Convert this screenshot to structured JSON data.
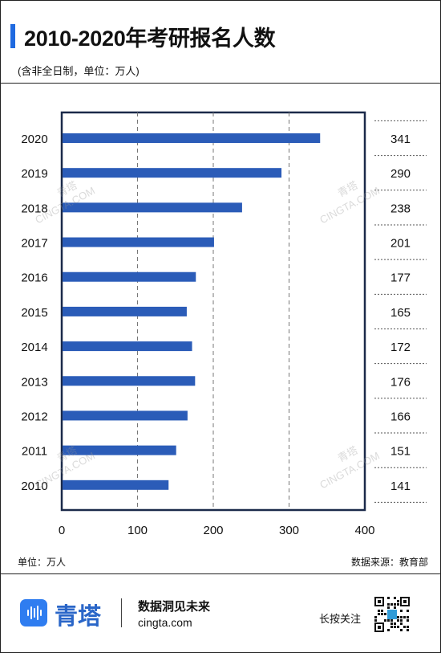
{
  "header": {
    "title": "2010-2020年考研报名人数",
    "subtitle": "(含非全日制，单位：万人)"
  },
  "footer": {
    "unit": "单位：万人",
    "source": "数据来源：教育部"
  },
  "brand": {
    "name": "青塔",
    "slogan": "数据洞见未来",
    "url": "cingta.com",
    "qr_prompt": "长按关注",
    "accent_color": "#2a66c8",
    "logo_icon": "waveform-logo-icon",
    "qr_icon": "qr-code-icon"
  },
  "watermarks": [
    "青塔",
    "CINGTA.COM"
  ],
  "chart_data": {
    "type": "bar",
    "orientation": "horizontal",
    "categories": [
      "2020",
      "2019",
      "2018",
      "2017",
      "2016",
      "2015",
      "2014",
      "2013",
      "2012",
      "2011",
      "2010"
    ],
    "values": [
      341,
      290,
      238,
      201,
      177,
      165,
      172,
      176,
      166,
      151,
      141
    ],
    "value_labels": [
      "341",
      "290",
      "238",
      "201",
      "177",
      "165",
      "172",
      "176",
      "166",
      "151",
      "141"
    ],
    "xlim": [
      0,
      400
    ],
    "xticks": [
      "0",
      "100",
      "200",
      "300",
      "400"
    ],
    "grid": "vertical dashed",
    "bar_color": "#2b5cb8"
  }
}
